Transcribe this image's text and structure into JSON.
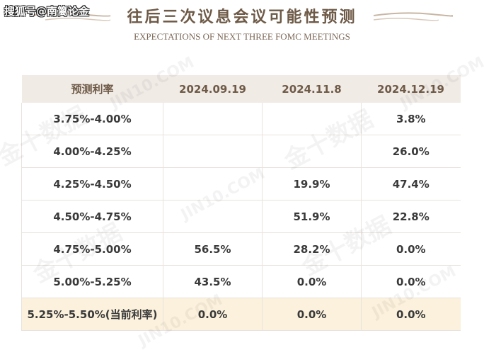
{
  "watermark": "搜狐号@南篱论金",
  "header": {
    "title": "往后三次议息会议可能性预测",
    "subtitle": "EXPECTATIONS OF NEXT THREE FOMC MEETINGS"
  },
  "background_watermarks": [
    "金十数据",
    "JIN10.COM"
  ],
  "table": {
    "headers": [
      "预测利率",
      "2024.09.19",
      "2024.11.8",
      "2024.12.19"
    ],
    "rows": [
      {
        "range": "3.75%-4.00%",
        "v1": "",
        "v2": "",
        "v3": "3.8%"
      },
      {
        "range": "4.00%-4.25%",
        "v1": "",
        "v2": "",
        "v3": "26.0%"
      },
      {
        "range": "4.25%-4.50%",
        "v1": "",
        "v2": "19.9%",
        "v3": "47.4%"
      },
      {
        "range": "4.50%-4.75%",
        "v1": "",
        "v2": "51.9%",
        "v3": "22.8%"
      },
      {
        "range": "4.75%-5.00%",
        "v1": "56.5%",
        "v2": "28.2%",
        "v3": "0.0%"
      },
      {
        "range": "5.00%-5.25%",
        "v1": "43.5%",
        "v2": "0.0%",
        "v3": "0.0%"
      },
      {
        "range": "5.25%-5.50%(当前利率)",
        "v1": "0.0%",
        "v2": "0.0%",
        "v3": "0.0%"
      }
    ]
  },
  "colors": {
    "title": "#6e5a47",
    "header_bg": "#f1ebe6",
    "current_row_bg": "#fbf1dc"
  }
}
